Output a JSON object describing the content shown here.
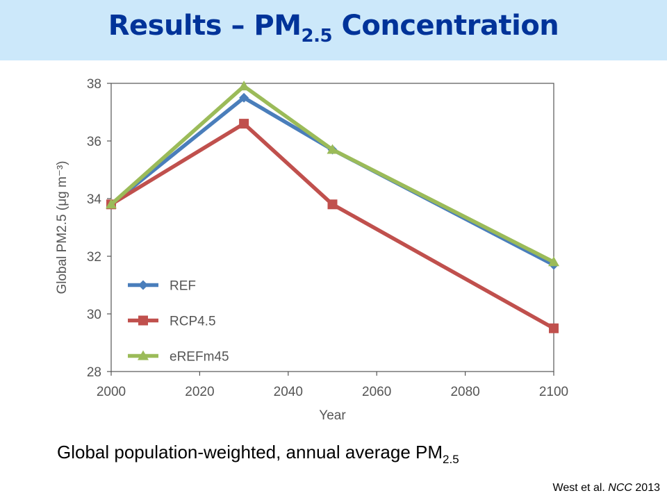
{
  "slide": {
    "title_main": "Results – PM",
    "title_sub": "2.5",
    "title_rest": " Concentration",
    "caption_main": "Global population-weighted, annual average PM",
    "caption_sub": "2.5",
    "citation_author": "West et al. ",
    "citation_journal": "NCC",
    "citation_year": " 2013"
  },
  "colors": {
    "title_bar": "#cce8fa",
    "title_text": "#003399",
    "REF": "#4a7ebb",
    "RCP4.5": "#c0504d",
    "eREFm45": "#9bbb59",
    "axis_text": "#555555"
  },
  "chart_data": {
    "type": "line",
    "x": [
      2000,
      2030,
      2050,
      2100
    ],
    "xlabel": "Year",
    "ylabel": "Global PM2.5 (μg m⁻³)",
    "xlim": [
      2000,
      2100
    ],
    "ylim": [
      28,
      38
    ],
    "xticks": [
      2000,
      2020,
      2040,
      2060,
      2080,
      2100
    ],
    "yticks": [
      28,
      30,
      32,
      34,
      36,
      38
    ],
    "grid": false,
    "legend_position": "lower-left",
    "series": [
      {
        "name": "REF",
        "marker": "diamond",
        "values": [
          33.8,
          37.5,
          35.7,
          31.7
        ]
      },
      {
        "name": "RCP4.5",
        "marker": "square",
        "values": [
          33.8,
          36.6,
          33.8,
          29.5
        ]
      },
      {
        "name": "eREFm45",
        "marker": "triangle",
        "values": [
          33.8,
          37.9,
          35.7,
          31.8
        ]
      }
    ]
  }
}
